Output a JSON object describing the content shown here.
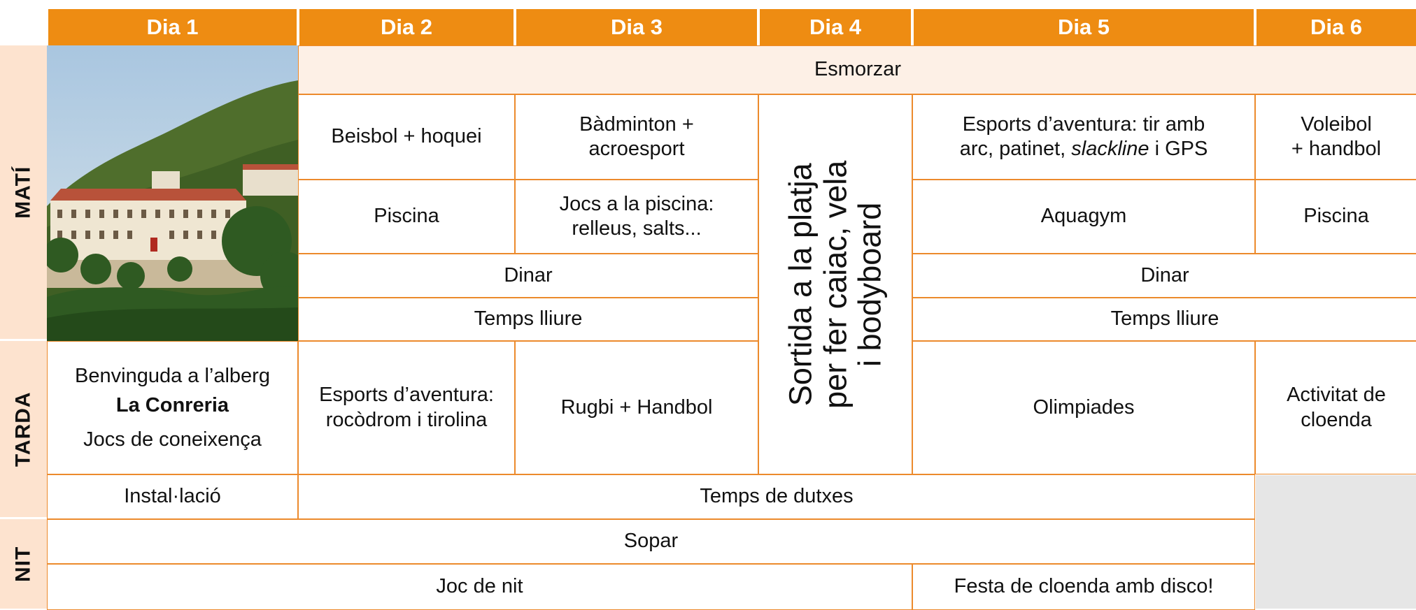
{
  "days": [
    "Dia 1",
    "Dia 2",
    "Dia 3",
    "Dia 4",
    "Dia 5",
    "Dia 6"
  ],
  "periods": [
    "MATÍ",
    "TARDA",
    "NIT"
  ],
  "cells": {
    "esmorzar": "Esmorzar",
    "beisbol": "Beisbol + hoquei",
    "badminton": [
      "Bàdminton +",
      "acroesport"
    ],
    "sortida": [
      "Sortida a la platja",
      "per fer caiac, vela",
      "i bodyboard"
    ],
    "esports_aventura": {
      "line1": "Esports d’aventura: tir amb",
      "line2_start": "arc, patinet,",
      "line2_italic": "slackline",
      "line2_end": "i GPS"
    },
    "voleibol": [
      "Voleibol",
      "+ handbol"
    ],
    "piscina_2": "Piscina",
    "jocs_piscina": [
      "Jocs a la piscina:",
      "relleus, salts..."
    ],
    "aquagym": "Aquagym",
    "piscina_6": "Piscina",
    "dinar_a": "Dinar",
    "dinar_b": "Dinar",
    "temps_lliure_a": "Temps lliure",
    "temps_lliure_b": "Temps lliure",
    "benvinguda": {
      "line1": "Benvinguda a l’alberg",
      "bold": "La Conreria",
      "line3": "Jocs de coneixença"
    },
    "esports_rocodrom": [
      "Esports d’aventura:",
      "rocòdrom i tirolina"
    ],
    "rugbi": "Rugbi + Handbol",
    "olimpiades": "Olimpiades",
    "activitat": [
      "Activitat de",
      "cloenda"
    ],
    "installacio": "Instal·lació",
    "dutxes": "Temps de dutxes",
    "sopar": "Sopar",
    "joc_nit": "Joc de nit",
    "festa": "Festa de cloenda amb disco!"
  }
}
